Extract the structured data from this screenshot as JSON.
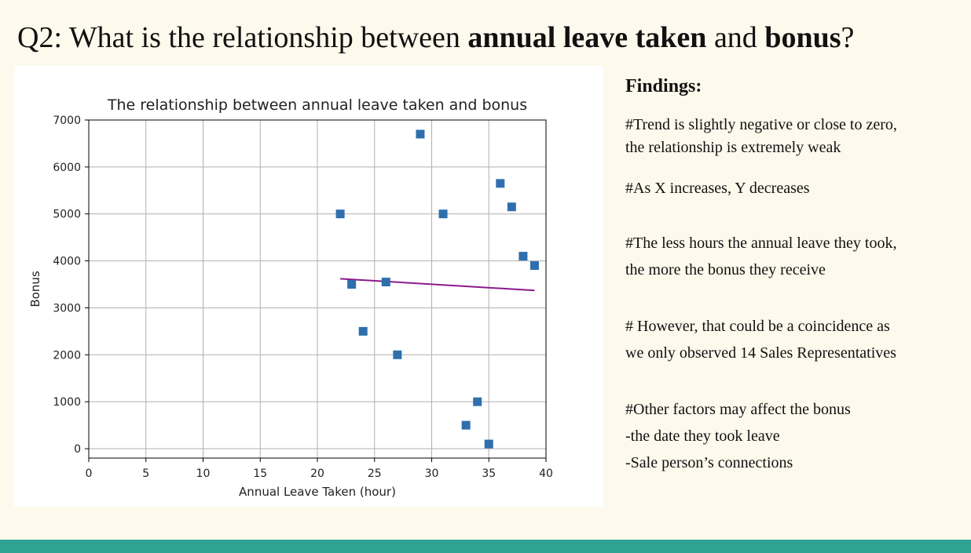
{
  "slide": {
    "title_parts": {
      "prefix": "Q2: What is the relationship between ",
      "bold1": "annual leave taken",
      "middle": " and ",
      "bold2": "bonus",
      "suffix": "?"
    }
  },
  "findings": {
    "heading": "Findings:",
    "blocks": [
      [
        "#Trend is slightly negative or close to zero,",
        "the relationship is extremely weak"
      ],
      [
        "#As X increases, Y decreases"
      ],
      [
        "#The less hours the annual leave they took,",
        "the more the bonus they receive"
      ],
      [
        "# However, that could be a coincidence as",
        "we only observed 14 Sales Representatives"
      ],
      [
        "#Other factors may affect the bonus",
        "-the date they took leave",
        "-Sale person’s connections"
      ]
    ]
  },
  "colors": {
    "background": "#fdf9ec",
    "bottom_bar": "#2fa393",
    "marker": "#2f6fad",
    "trend_line": "#8b1a8b"
  },
  "chart_data": {
    "type": "scatter",
    "title": "The relationship between annual leave taken and bonus",
    "xlabel": "Annual Leave Taken (hour)",
    "ylabel": "Bonus",
    "xlim": [
      0,
      40
    ],
    "ylim": [
      -200,
      7000
    ],
    "xticks": [
      0,
      5,
      10,
      15,
      20,
      25,
      30,
      35,
      40
    ],
    "yticks": [
      0,
      1000,
      2000,
      3000,
      4000,
      5000,
      6000,
      7000
    ],
    "grid": true,
    "marker": "square",
    "points": [
      {
        "x": 22,
        "y": 5000
      },
      {
        "x": 23,
        "y": 3500
      },
      {
        "x": 24,
        "y": 2500
      },
      {
        "x": 26,
        "y": 3550
      },
      {
        "x": 27,
        "y": 2000
      },
      {
        "x": 29,
        "y": 6700
      },
      {
        "x": 31,
        "y": 5000
      },
      {
        "x": 33,
        "y": 500
      },
      {
        "x": 34,
        "y": 1000
      },
      {
        "x": 35,
        "y": 100
      },
      {
        "x": 36,
        "y": 5650
      },
      {
        "x": 37,
        "y": 5150
      },
      {
        "x": 38,
        "y": 4100
      },
      {
        "x": 39,
        "y": 3900
      }
    ],
    "trend_line": {
      "x": [
        22,
        39
      ],
      "y": [
        3620,
        3370
      ]
    }
  }
}
